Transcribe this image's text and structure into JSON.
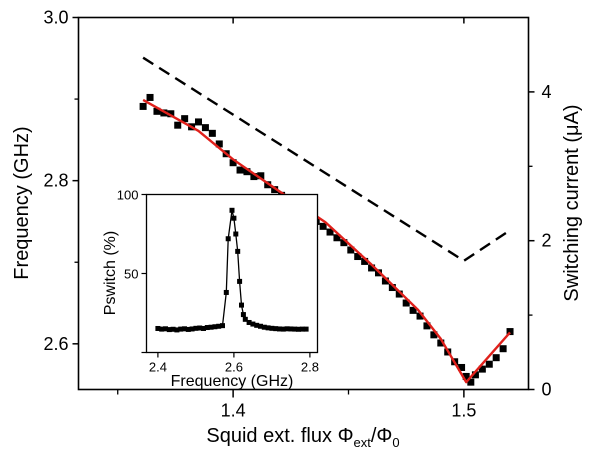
{
  "chart_data": {
    "type": "scatter",
    "main": {
      "xlabel": "Squid ext. flux Φext/Φ0",
      "xlabel_parts": {
        "prefix": "Squid ext. flux ",
        "phi": "Φ",
        "sub1": "ext",
        "slash": "/Φ",
        "sub2": "0"
      },
      "ylabel_left": "Frequency (GHz)",
      "ylabel_right": "Switching current (μA)",
      "xlim": [
        1.333,
        1.528
      ],
      "ylim_left": [
        2.544,
        3.0
      ],
      "ylim_right": [
        0,
        5.0
      ],
      "x_ticks": [
        {
          "value": 1.4,
          "label": "1.4"
        },
        {
          "value": 1.5,
          "label": "1.5"
        }
      ],
      "y_ticks_left": [
        {
          "value": 2.6,
          "label": "2.6"
        },
        {
          "value": 2.8,
          "label": "2.8"
        },
        {
          "value": 3.0,
          "label": "3.0"
        }
      ],
      "y_ticks_right": [
        {
          "value": 0,
          "label": "0"
        },
        {
          "value": 2,
          "label": "2"
        },
        {
          "value": 4,
          "label": "4"
        }
      ],
      "series": [
        {
          "kind": "markers",
          "axis": "left",
          "color": "#000000",
          "points": [
            [
              1.361,
              2.891
            ],
            [
              1.364,
              2.902
            ],
            [
              1.367,
              2.885
            ],
            [
              1.37,
              2.883
            ],
            [
              1.373,
              2.882
            ],
            [
              1.376,
              2.868
            ],
            [
              1.379,
              2.876
            ],
            [
              1.382,
              2.866
            ],
            [
              1.385,
              2.872
            ],
            [
              1.388,
              2.865
            ],
            [
              1.391,
              2.858
            ],
            [
              1.394,
              2.845
            ],
            [
              1.397,
              2.833
            ],
            [
              1.4,
              2.822
            ],
            [
              1.403,
              2.813
            ],
            [
              1.406,
              2.811
            ],
            [
              1.409,
              2.805
            ],
            [
              1.412,
              2.806
            ],
            [
              1.415,
              2.795
            ],
            [
              1.418,
              2.789
            ],
            [
              1.421,
              2.782
            ],
            [
              1.424,
              2.775
            ],
            [
              1.427,
              2.768
            ],
            [
              1.43,
              2.764
            ],
            [
              1.433,
              2.756
            ],
            [
              1.436,
              2.75
            ],
            [
              1.439,
              2.744
            ],
            [
              1.442,
              2.737
            ],
            [
              1.445,
              2.73
            ],
            [
              1.448,
              2.724
            ],
            [
              1.451,
              2.715
            ],
            [
              1.454,
              2.707
            ],
            [
              1.457,
              2.701
            ],
            [
              1.46,
              2.693
            ],
            [
              1.463,
              2.687
            ],
            [
              1.466,
              2.677
            ],
            [
              1.469,
              2.669
            ],
            [
              1.472,
              2.661
            ],
            [
              1.475,
              2.65
            ],
            [
              1.478,
              2.641
            ],
            [
              1.481,
              2.634
            ],
            [
              1.484,
              2.622
            ],
            [
              1.487,
              2.611
            ],
            [
              1.49,
              2.601
            ],
            [
              1.493,
              2.59
            ],
            [
              1.496,
              2.578
            ],
            [
              1.499,
              2.571
            ],
            [
              1.501,
              2.56
            ],
            [
              1.503,
              2.553
            ],
            [
              1.505,
              2.562
            ],
            [
              1.508,
              2.569
            ],
            [
              1.511,
              2.575
            ],
            [
              1.514,
              2.583
            ],
            [
              1.517,
              2.594
            ],
            [
              1.52,
              2.615
            ]
          ]
        },
        {
          "kind": "fit",
          "axis": "left",
          "color": "#e0201b",
          "points": [
            [
              1.361,
              2.899
            ],
            [
              1.385,
              2.861
            ],
            [
              1.4,
              2.826
            ],
            [
              1.42,
              2.787
            ],
            [
              1.44,
              2.749
            ],
            [
              1.46,
              2.697
            ],
            [
              1.48,
              2.642
            ],
            [
              1.49,
              2.606
            ],
            [
              1.501,
              2.553
            ],
            [
              1.52,
              2.614
            ]
          ]
        },
        {
          "kind": "dashed",
          "axis": "right",
          "color": "#000000",
          "points": [
            [
              1.361,
              4.46
            ],
            [
              1.5,
              1.73
            ],
            [
              1.52,
              2.14
            ]
          ]
        }
      ]
    },
    "inset": {
      "xlabel": "Frequency (GHz)",
      "ylabel": "Pswitch (%)",
      "xlim": [
        2.37,
        2.82
      ],
      "ylim": [
        0,
        100
      ],
      "x_ticks": [
        {
          "value": 2.4,
          "label": "2.4"
        },
        {
          "value": 2.6,
          "label": "2.6"
        },
        {
          "value": 2.8,
          "label": "2.8"
        }
      ],
      "y_ticks": [
        {
          "value": 0,
          "label": ""
        },
        {
          "value": 50,
          "label": "50"
        },
        {
          "value": 100,
          "label": "100"
        }
      ],
      "series": [
        {
          "kind": "markers+line",
          "color": "#000000",
          "points": [
            [
              2.4,
              15.2
            ],
            [
              2.41,
              14.8
            ],
            [
              2.42,
              15.0
            ],
            [
              2.43,
              14.5
            ],
            [
              2.44,
              14.7
            ],
            [
              2.45,
              14.3
            ],
            [
              2.46,
              14.8
            ],
            [
              2.47,
              15.0
            ],
            [
              2.48,
              14.6
            ],
            [
              2.49,
              14.9
            ],
            [
              2.5,
              15.3
            ],
            [
              2.51,
              15.5
            ],
            [
              2.52,
              15.2
            ],
            [
              2.53,
              15.8
            ],
            [
              2.54,
              16.0
            ],
            [
              2.55,
              16.3
            ],
            [
              2.56,
              16.6
            ],
            [
              2.57,
              17.0
            ],
            [
              2.58,
              38.0
            ],
            [
              2.585,
              72.0
            ],
            [
              2.595,
              90.0
            ],
            [
              2.6,
              85.0
            ],
            [
              2.605,
              75.0
            ],
            [
              2.61,
              64.0
            ],
            [
              2.615,
              45.0
            ],
            [
              2.62,
              30.0
            ],
            [
              2.625,
              24.0
            ],
            [
              2.63,
              21.0
            ],
            [
              2.64,
              19.0
            ],
            [
              2.65,
              18.0
            ],
            [
              2.66,
              17.2
            ],
            [
              2.67,
              16.6
            ],
            [
              2.68,
              16.0
            ],
            [
              2.69,
              15.6
            ],
            [
              2.7,
              15.3
            ],
            [
              2.71,
              15.1
            ],
            [
              2.72,
              14.9
            ],
            [
              2.73,
              14.8
            ],
            [
              2.74,
              15.0
            ],
            [
              2.75,
              14.9
            ],
            [
              2.76,
              14.8
            ],
            [
              2.77,
              14.7
            ],
            [
              2.78,
              14.8
            ],
            [
              2.79,
              14.8
            ]
          ]
        }
      ]
    }
  }
}
